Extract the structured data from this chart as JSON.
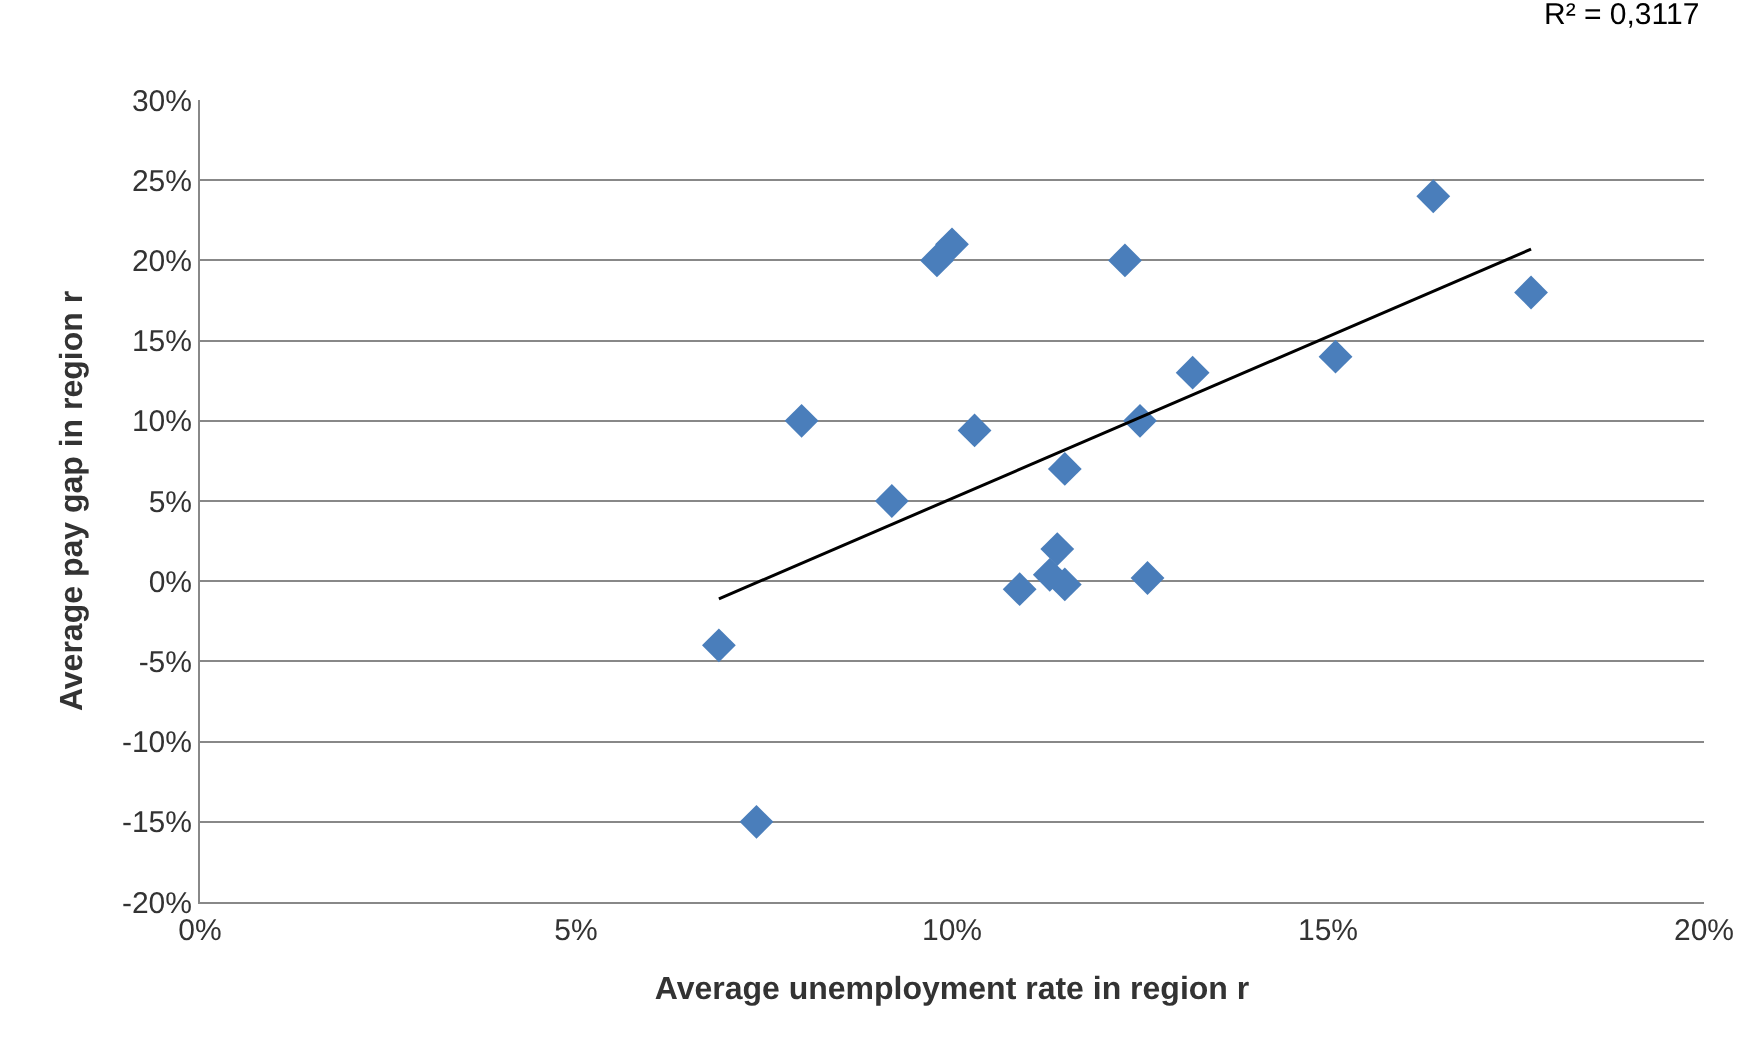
{
  "chart_data": {
    "type": "scatter",
    "xlabel": "Average unemployment rate in region r",
    "ylabel": "Average pay gap in region r",
    "annotations": [
      "R² = 0,3117"
    ],
    "xlim": [
      0,
      20
    ],
    "ylim": [
      -20,
      30
    ],
    "xticks": [
      {
        "value": 0,
        "label": "0%"
      },
      {
        "value": 5,
        "label": "5%"
      },
      {
        "value": 10,
        "label": "10%"
      },
      {
        "value": 15,
        "label": "15%"
      },
      {
        "value": 20,
        "label": "20%"
      }
    ],
    "yticks": [
      {
        "value": -20,
        "label": "-20%"
      },
      {
        "value": -15,
        "label": "-15%"
      },
      {
        "value": -10,
        "label": "-10%"
      },
      {
        "value": -5,
        "label": "-5%"
      },
      {
        "value": 0,
        "label": "0%"
      },
      {
        "value": 5,
        "label": "5%"
      },
      {
        "value": 10,
        "label": "10%"
      },
      {
        "value": 15,
        "label": "15%"
      },
      {
        "value": 20,
        "label": "20%"
      },
      {
        "value": 25,
        "label": "25%"
      },
      {
        "value": 30,
        "label": "30%"
      }
    ],
    "grid": "y",
    "marker": "diamond",
    "legend": false,
    "series": [
      {
        "color": "#4a7ebb",
        "x": [
          6.9,
          7.4,
          8.0,
          9.2,
          9.8,
          10.0,
          10.3,
          10.9,
          11.3,
          11.4,
          11.5,
          11.5,
          12.3,
          12.5,
          12.6,
          13.2,
          15.1,
          16.4,
          17.7
        ],
        "values": [
          -4,
          -15,
          10,
          5,
          20,
          21,
          9.4,
          -0.5,
          0.4,
          2,
          7,
          -0.2,
          20,
          10,
          0.2,
          13,
          14,
          24,
          18
        ]
      },
      {
        "type": "line",
        "color": "#000000",
        "marker": "none",
        "x": [
          6.9,
          17.7
        ],
        "values": [
          -1.1,
          20.7
        ]
      }
    ]
  }
}
